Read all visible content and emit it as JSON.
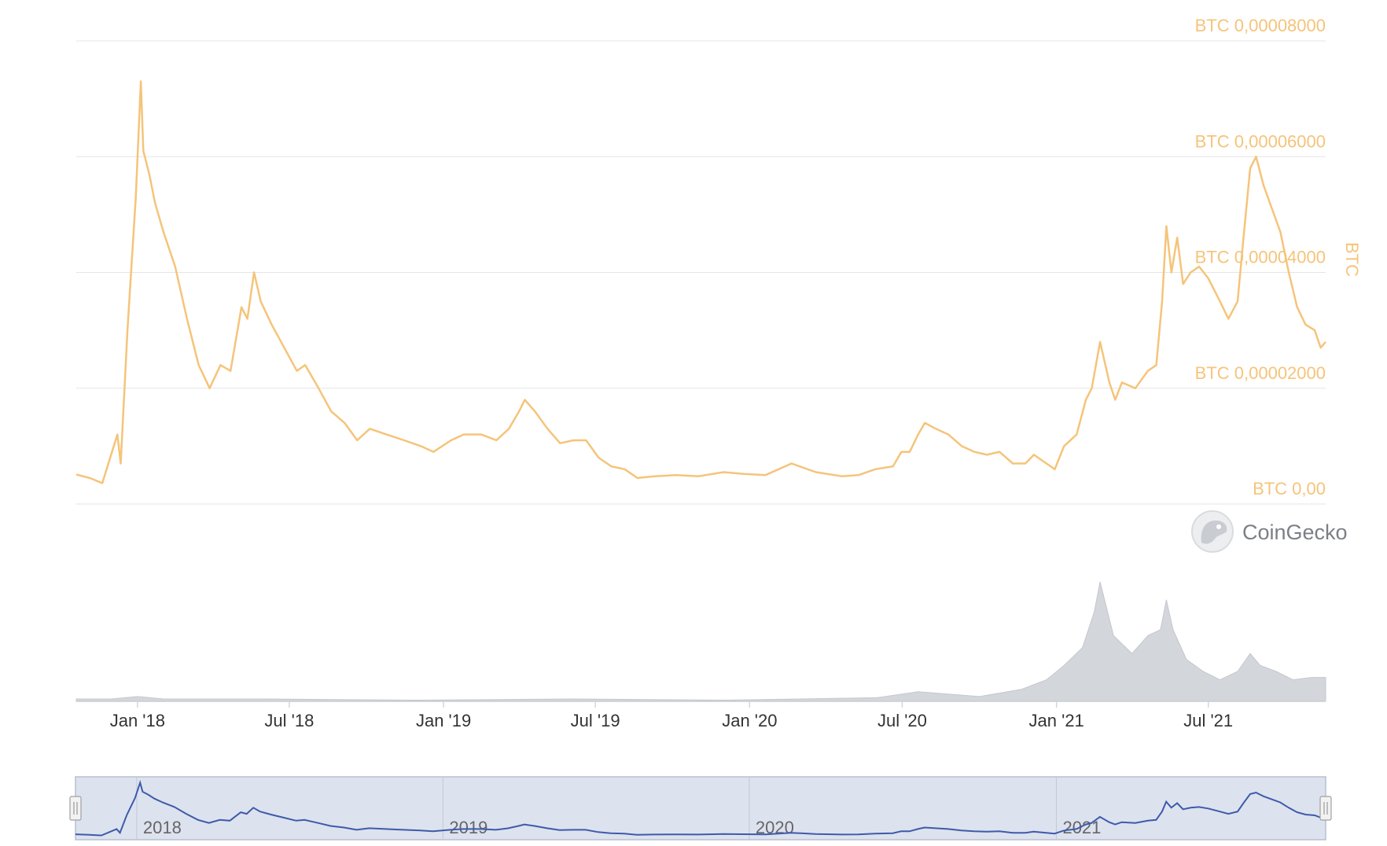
{
  "chart_data": {
    "type": "line",
    "title": "",
    "ylabel": "BTC",
    "xlabel": "",
    "x_range": [
      "2017-10-20",
      "2021-11-18"
    ],
    "ylim": [
      0,
      8e-05
    ],
    "y_ticks": [
      {
        "value": 0,
        "label": "BTC 0,00"
      },
      {
        "value": 2e-05,
        "label": "BTC 0,00002000"
      },
      {
        "value": 4e-05,
        "label": "BTC 0,00004000"
      },
      {
        "value": 6e-05,
        "label": "BTC 0,00006000"
      },
      {
        "value": 8e-05,
        "label": "BTC 0,00008000"
      }
    ],
    "x_ticks": [
      {
        "date": "2018-01-01",
        "label": "Jan '18"
      },
      {
        "date": "2018-07-01",
        "label": "Jul '18"
      },
      {
        "date": "2019-01-01",
        "label": "Jan '19"
      },
      {
        "date": "2019-07-01",
        "label": "Jul '19"
      },
      {
        "date": "2020-01-01",
        "label": "Jan '20"
      },
      {
        "date": "2020-07-01",
        "label": "Jul '20"
      },
      {
        "date": "2021-01-01",
        "label": "Jan '21"
      },
      {
        "date": "2021-07-01",
        "label": "Jul '21"
      }
    ],
    "grid": true,
    "series": [
      {
        "color": "#f5c47a",
        "points": [
          [
            "2017-10-20",
            5.1e-06
          ],
          [
            "2017-11-05",
            4.5e-06
          ],
          [
            "2017-11-20",
            3.6e-06
          ],
          [
            "2017-12-08",
            1.2e-05
          ],
          [
            "2017-12-12",
            7e-06
          ],
          [
            "2017-12-20",
            3e-05
          ],
          [
            "2017-12-30",
            5.3e-05
          ],
          [
            "2018-01-05",
            7.3e-05
          ],
          [
            "2018-01-08",
            6.1e-05
          ],
          [
            "2018-01-15",
            5.7e-05
          ],
          [
            "2018-01-22",
            5.2e-05
          ],
          [
            "2018-02-01",
            4.7e-05
          ],
          [
            "2018-02-15",
            4.1e-05
          ],
          [
            "2018-03-01",
            3.2e-05
          ],
          [
            "2018-03-15",
            2.4e-05
          ],
          [
            "2018-03-28",
            2e-05
          ],
          [
            "2018-04-10",
            2.4e-05
          ],
          [
            "2018-04-22",
            2.3e-05
          ],
          [
            "2018-05-05",
            3.4e-05
          ],
          [
            "2018-05-12",
            3.2e-05
          ],
          [
            "2018-05-20",
            4e-05
          ],
          [
            "2018-05-28",
            3.5e-05
          ],
          [
            "2018-06-10",
            3.1e-05
          ],
          [
            "2018-06-25",
            2.7e-05
          ],
          [
            "2018-07-10",
            2.3e-05
          ],
          [
            "2018-07-20",
            2.4e-05
          ],
          [
            "2018-08-05",
            2e-05
          ],
          [
            "2018-08-20",
            1.6e-05
          ],
          [
            "2018-09-05",
            1.4e-05
          ],
          [
            "2018-09-20",
            1.1e-05
          ],
          [
            "2018-10-05",
            1.3e-05
          ],
          [
            "2018-10-25",
            1.2e-05
          ],
          [
            "2018-11-15",
            1.1e-05
          ],
          [
            "2018-12-05",
            1e-05
          ],
          [
            "2018-12-20",
            9e-06
          ],
          [
            "2019-01-10",
            1.1e-05
          ],
          [
            "2019-01-25",
            1.2e-05
          ],
          [
            "2019-02-15",
            1.2e-05
          ],
          [
            "2019-03-05",
            1.1e-05
          ],
          [
            "2019-03-20",
            1.3e-05
          ],
          [
            "2019-04-01",
            1.6e-05
          ],
          [
            "2019-04-08",
            1.8e-05
          ],
          [
            "2019-04-20",
            1.6e-05
          ],
          [
            "2019-05-05",
            1.3e-05
          ],
          [
            "2019-05-20",
            1.05e-05
          ],
          [
            "2019-06-05",
            1.1e-05
          ],
          [
            "2019-06-20",
            1.1e-05
          ],
          [
            "2019-07-05",
            8e-06
          ],
          [
            "2019-07-20",
            6.5e-06
          ],
          [
            "2019-08-05",
            6e-06
          ],
          [
            "2019-08-20",
            4.5e-06
          ],
          [
            "2019-09-10",
            4.8e-06
          ],
          [
            "2019-10-05",
            5e-06
          ],
          [
            "2019-11-01",
            4.8e-06
          ],
          [
            "2019-12-01",
            5.5e-06
          ],
          [
            "2019-12-25",
            5.2e-06
          ],
          [
            "2020-01-20",
            5e-06
          ],
          [
            "2020-02-20",
            7e-06
          ],
          [
            "2020-03-20",
            5.5e-06
          ],
          [
            "2020-04-20",
            4.8e-06
          ],
          [
            "2020-05-10",
            5e-06
          ],
          [
            "2020-05-30",
            6e-06
          ],
          [
            "2020-06-20",
            6.5e-06
          ],
          [
            "2020-06-30",
            9e-06
          ],
          [
            "2020-07-10",
            9e-06
          ],
          [
            "2020-07-20",
            1.2e-05
          ],
          [
            "2020-07-28",
            1.4e-05
          ],
          [
            "2020-08-10",
            1.3e-05
          ],
          [
            "2020-08-25",
            1.2e-05
          ],
          [
            "2020-09-10",
            1e-05
          ],
          [
            "2020-09-25",
            9e-06
          ],
          [
            "2020-10-10",
            8.5e-06
          ],
          [
            "2020-10-25",
            9e-06
          ],
          [
            "2020-11-10",
            7e-06
          ],
          [
            "2020-11-25",
            7e-06
          ],
          [
            "2020-12-05",
            8.5e-06
          ],
          [
            "2020-12-20",
            7e-06
          ],
          [
            "2020-12-30",
            6e-06
          ],
          [
            "2021-01-10",
            1e-05
          ],
          [
            "2021-01-25",
            1.2e-05
          ],
          [
            "2021-02-05",
            1.8e-05
          ],
          [
            "2021-02-12",
            2e-05
          ],
          [
            "2021-02-22",
            2.8e-05
          ],
          [
            "2021-03-05",
            2.1e-05
          ],
          [
            "2021-03-12",
            1.8e-05
          ],
          [
            "2021-03-20",
            2.1e-05
          ],
          [
            "2021-04-05",
            2e-05
          ],
          [
            "2021-04-20",
            2.3e-05
          ],
          [
            "2021-04-30",
            2.4e-05
          ],
          [
            "2021-05-07",
            3.5e-05
          ],
          [
            "2021-05-12",
            4.8e-05
          ],
          [
            "2021-05-18",
            4e-05
          ],
          [
            "2021-05-25",
            4.6e-05
          ],
          [
            "2021-06-01",
            3.8e-05
          ],
          [
            "2021-06-10",
            4e-05
          ],
          [
            "2021-06-20",
            4.1e-05
          ],
          [
            "2021-07-01",
            3.9e-05
          ],
          [
            "2021-07-15",
            3.5e-05
          ],
          [
            "2021-07-25",
            3.2e-05
          ],
          [
            "2021-08-05",
            3.5e-05
          ],
          [
            "2021-08-12",
            4.6e-05
          ],
          [
            "2021-08-20",
            5.8e-05
          ],
          [
            "2021-08-27",
            6e-05
          ],
          [
            "2021-09-05",
            5.5e-05
          ],
          [
            "2021-09-15",
            5.1e-05
          ],
          [
            "2021-09-25",
            4.7e-05
          ],
          [
            "2021-10-05",
            4e-05
          ],
          [
            "2021-10-15",
            3.4e-05
          ],
          [
            "2021-10-25",
            3.1e-05
          ],
          [
            "2021-11-05",
            3e-05
          ],
          [
            "2021-11-12",
            2.7e-05
          ],
          [
            "2021-11-18",
            2.8e-05
          ]
        ]
      }
    ],
    "volume": {
      "color": "#d3d6db",
      "points": [
        [
          "2017-10-20",
          0.02
        ],
        [
          "2017-12-01",
          0.02
        ],
        [
          "2018-01-01",
          0.04
        ],
        [
          "2018-02-01",
          0.02
        ],
        [
          "2018-06-01",
          0.02
        ],
        [
          "2018-12-01",
          0.01
        ],
        [
          "2019-06-01",
          0.02
        ],
        [
          "2019-12-01",
          0.01
        ],
        [
          "2020-06-01",
          0.03
        ],
        [
          "2020-07-20",
          0.08
        ],
        [
          "2020-10-01",
          0.04
        ],
        [
          "2020-11-20",
          0.1
        ],
        [
          "2020-12-20",
          0.18
        ],
        [
          "2021-01-10",
          0.3
        ],
        [
          "2021-02-01",
          0.45
        ],
        [
          "2021-02-15",
          0.75
        ],
        [
          "2021-02-22",
          1.0
        ],
        [
          "2021-03-10",
          0.55
        ],
        [
          "2021-04-01",
          0.4
        ],
        [
          "2021-04-20",
          0.55
        ],
        [
          "2021-05-05",
          0.6
        ],
        [
          "2021-05-12",
          0.85
        ],
        [
          "2021-05-20",
          0.6
        ],
        [
          "2021-06-05",
          0.35
        ],
        [
          "2021-06-25",
          0.25
        ],
        [
          "2021-07-15",
          0.18
        ],
        [
          "2021-08-05",
          0.25
        ],
        [
          "2021-08-20",
          0.4
        ],
        [
          "2021-09-01",
          0.3
        ],
        [
          "2021-09-20",
          0.25
        ],
        [
          "2021-10-10",
          0.18
        ],
        [
          "2021-11-01",
          0.2
        ],
        [
          "2021-11-18",
          0.2
        ]
      ]
    },
    "navigator": {
      "labels": [
        {
          "date": "2018-01-01",
          "label": "2018"
        },
        {
          "date": "2019-01-01",
          "label": "2019"
        },
        {
          "date": "2020-01-01",
          "label": "2020"
        },
        {
          "date": "2021-01-01",
          "label": "2021"
        }
      ],
      "line_color": "#3d5ba9",
      "mask_color": "#dde2ef"
    }
  },
  "watermark": {
    "label": "CoinGecko"
  }
}
